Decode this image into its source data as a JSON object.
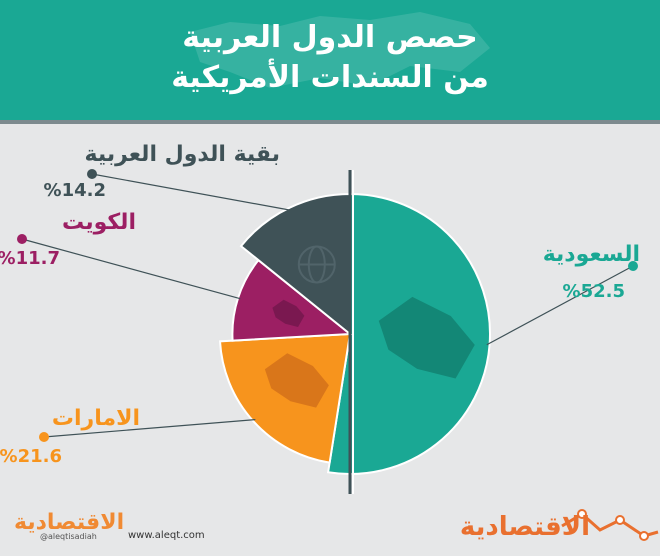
{
  "header": {
    "title_line1": "حصص الدول العربية",
    "title_line2": "من السندات الأمريكية",
    "bg_color": "#1aa894"
  },
  "chart_data": {
    "type": "pie",
    "title": "حصص الدول العربية من السندات الأمريكية",
    "slices": [
      {
        "label": "السعودية",
        "value": 52.5,
        "value_text": "%52.5",
        "color": "#1aa894",
        "label_color": "#1aa894",
        "icon": "saudi-map-icon"
      },
      {
        "label": "الامارات",
        "value": 21.6,
        "value_text": "%21.6",
        "color": "#f7941d",
        "label_color": "#f7941d",
        "icon": "uae-map-icon"
      },
      {
        "label": "الكويت",
        "value": 11.7,
        "value_text": "%11.7",
        "color": "#9c1f63",
        "label_color": "#9c1f63",
        "icon": "kuwait-map-icon"
      },
      {
        "label": "بقية الدول العربية",
        "value": 14.2,
        "value_text": "%14.2",
        "color": "#3f5257",
        "label_color": "#3f5257",
        "icon": "globe-icon"
      }
    ]
  },
  "footer": {
    "brand_right": "الاقتصادية",
    "brand_left": "الاقتصادية",
    "handle": "@aleqtisadiah",
    "site": "www.aleqt.com"
  }
}
